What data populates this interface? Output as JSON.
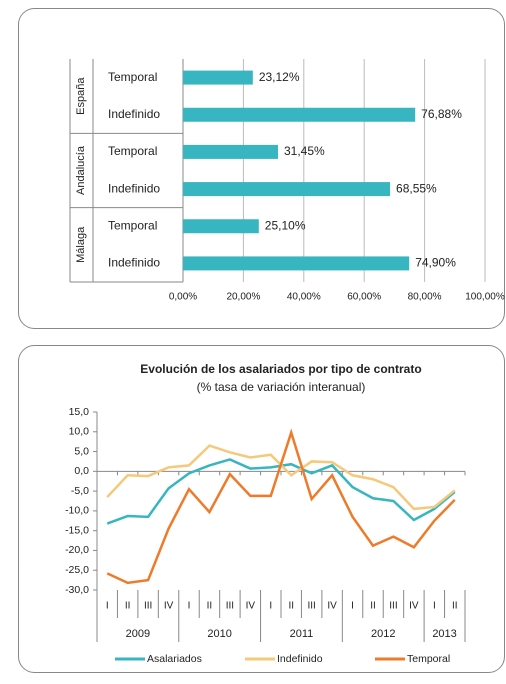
{
  "chart_data": [
    {
      "type": "hbar",
      "color": "#37b6c2",
      "groups": [
        {
          "name": "España",
          "categories": [
            "Temporal",
            "Indefinido"
          ],
          "values": [
            23.12,
            76.88
          ],
          "value_labels": [
            "23,12%",
            "76,88%"
          ]
        },
        {
          "name": "Andalucía",
          "categories": [
            "Temporal",
            "Indefinido"
          ],
          "values": [
            31.45,
            68.55
          ],
          "value_labels": [
            "31,45%",
            "68,55%"
          ]
        },
        {
          "name": "Málaga",
          "categories": [
            "Temporal",
            "Indefinido"
          ],
          "values": [
            25.1,
            74.9
          ],
          "value_labels": [
            "25,10%",
            "74,90%"
          ]
        }
      ],
      "xlim": [
        0,
        100
      ],
      "xticks": [
        {
          "value": 0,
          "label": "0,00%"
        },
        {
          "value": 20,
          "label": "20,00%"
        },
        {
          "value": 40,
          "label": "40,00%"
        },
        {
          "value": 60,
          "label": "60,00%"
        },
        {
          "value": 80,
          "label": "80,00%"
        },
        {
          "value": 100,
          "label": "100,00%"
        }
      ],
      "grid": true
    },
    {
      "type": "line",
      "title": "Evolución de  los asalariados por tipo de contrato",
      "subtitle": "(% tasa de variación interanual)",
      "groups": [
        {
          "name": "2009",
          "categories": [
            "I",
            "II",
            "III",
            "IV"
          ]
        },
        {
          "name": "2010",
          "categories": [
            "I",
            "II",
            "III",
            "IV"
          ]
        },
        {
          "name": "2011",
          "categories": [
            "I",
            "II",
            "III",
            "IV"
          ]
        },
        {
          "name": "2012",
          "categories": [
            "I",
            "II",
            "III",
            "IV"
          ]
        },
        {
          "name": "2013",
          "categories": [
            "I",
            "II"
          ]
        }
      ],
      "series": [
        {
          "name": "Asalariados",
          "color": "#37b6c2",
          "values": [
            -13.2,
            -11.3,
            -11.5,
            -4.3,
            -0.5,
            1.5,
            3.0,
            0.7,
            1.0,
            1.8,
            -0.5,
            1.5,
            -4.0,
            -6.8,
            -7.5,
            -12.3,
            -9.5,
            -5.2
          ]
        },
        {
          "name": "Indefinido",
          "color": "#f5c97a",
          "values": [
            -6.5,
            -1.0,
            -1.2,
            1.0,
            1.5,
            6.5,
            4.8,
            3.5,
            4.2,
            -1.0,
            2.5,
            2.3,
            -1.0,
            -2.0,
            -4.0,
            -9.5,
            -9.0,
            -4.8
          ]
        },
        {
          "name": "Temporal",
          "color": "#ee7a2a",
          "values": [
            -25.8,
            -28.2,
            -27.5,
            -14.5,
            -4.5,
            -10.3,
            -0.7,
            -6.2,
            -6.2,
            9.8,
            -7.0,
            -1.0,
            -11.5,
            -18.8,
            -16.5,
            -19.2,
            -12.5,
            -7.2
          ]
        }
      ],
      "ylim": [
        -30,
        15
      ],
      "yticks": [
        {
          "value": 15,
          "label": "15,0"
        },
        {
          "value": 10,
          "label": "10,0"
        },
        {
          "value": 5,
          "label": "5,0"
        },
        {
          "value": 0,
          "label": "0,0"
        },
        {
          "value": -5,
          "label": "-5,0"
        },
        {
          "value": -10,
          "label": "-10,0"
        },
        {
          "value": -15,
          "label": "-15,0"
        },
        {
          "value": -20,
          "label": "-20,0"
        },
        {
          "value": -25,
          "label": "-25,0"
        },
        {
          "value": -30,
          "label": "-30,0"
        }
      ],
      "grid": false,
      "legend": "bottom"
    }
  ]
}
